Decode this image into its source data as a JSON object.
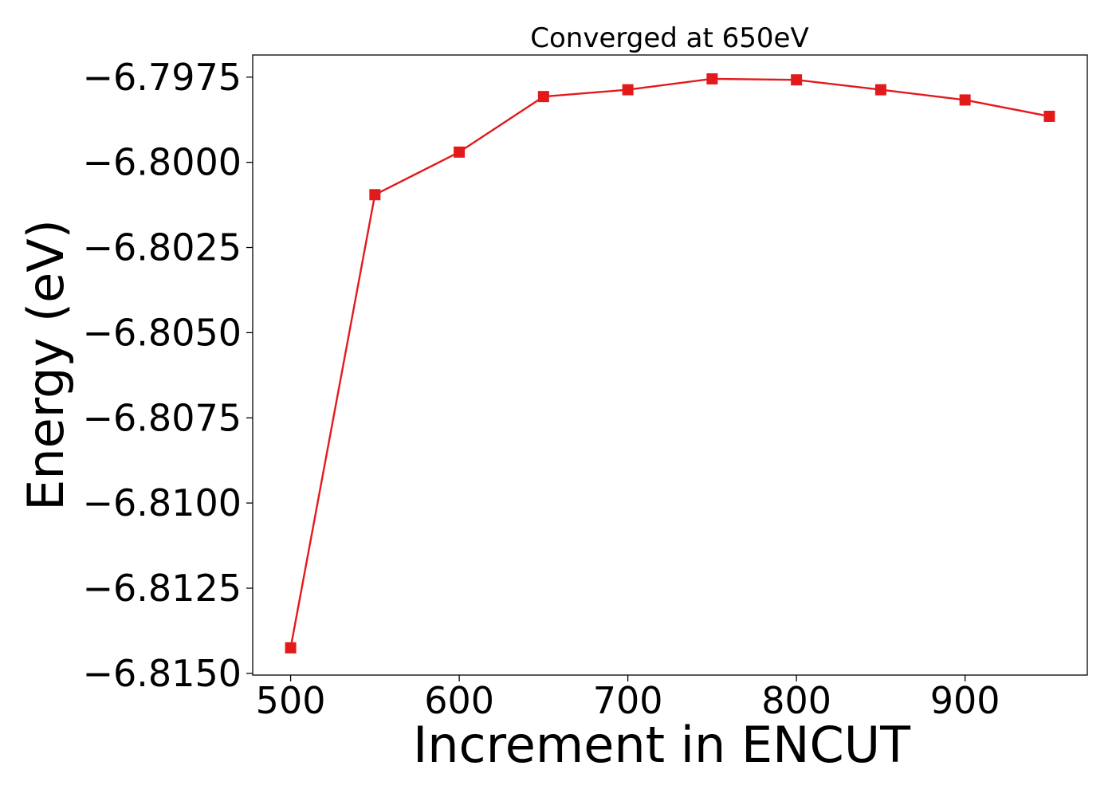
{
  "chart_data": {
    "type": "line",
    "title": "Converged at 650eV",
    "xlabel": "Increment in ENCUT",
    "ylabel": "Energy (eV)",
    "x": [
      500,
      550,
      600,
      650,
      700,
      750,
      800,
      850,
      900,
      950
    ],
    "series": [
      {
        "values": [
          -6.81425,
          -6.80095,
          -6.7997,
          -6.79807,
          -6.79787,
          -6.79755,
          -6.79758,
          -6.79787,
          -6.79817,
          -6.79865
        ],
        "color": "#e31a1c",
        "marker": "square"
      }
    ],
    "xlim": [
      477.5,
      972.5
    ],
    "ylim": [
      -6.81505,
      -6.79685
    ],
    "xticks": [
      500,
      600,
      700,
      800,
      900
    ],
    "xtick_labels": [
      "500",
      "600",
      "700",
      "800",
      "900"
    ],
    "yticks": [
      -6.7975,
      -6.8,
      -6.8025,
      -6.805,
      -6.8075,
      -6.81,
      -6.8125,
      -6.815
    ],
    "ytick_labels": [
      "−6.7975",
      "−6.8000",
      "−6.8025",
      "−6.8050",
      "−6.8075",
      "−6.8100",
      "−6.8125",
      "−6.8150"
    ],
    "grid": false,
    "legend": false
  }
}
